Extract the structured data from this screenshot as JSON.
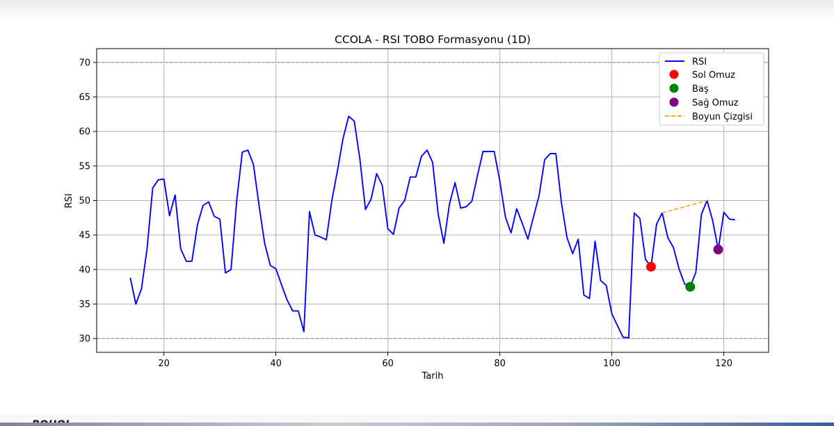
{
  "chart_data": {
    "type": "line",
    "title": "CCOLA - RSI TOBO Formasyonu (1D)",
    "xlabel": "Tarih",
    "ylabel": "RSI",
    "xlim": [
      8,
      128
    ],
    "ylim": [
      28,
      72
    ],
    "xticks": [
      20,
      40,
      60,
      80,
      100,
      120
    ],
    "yticks": [
      30,
      35,
      40,
      45,
      50,
      55,
      60,
      65,
      70
    ],
    "grid": true,
    "legend_position": "top-right",
    "series": [
      {
        "name": "RSI",
        "color": "#0000ff",
        "style": "solid",
        "x": [
          14,
          15,
          16,
          17,
          18,
          19,
          20,
          21,
          22,
          23,
          24,
          25,
          26,
          27,
          28,
          29,
          30,
          31,
          32,
          33,
          34,
          35,
          36,
          37,
          38,
          39,
          40,
          41,
          42,
          43,
          44,
          45,
          46,
          47,
          48,
          49,
          50,
          51,
          52,
          53,
          54,
          55,
          56,
          57,
          58,
          59,
          60,
          61,
          62,
          63,
          64,
          65,
          66,
          67,
          68,
          69,
          70,
          71,
          72,
          73,
          74,
          75,
          76,
          77,
          78,
          79,
          80,
          81,
          82,
          83,
          84,
          85,
          86,
          87,
          88,
          89,
          90,
          91,
          92,
          93,
          94,
          95,
          96,
          97,
          98,
          99,
          100,
          101,
          102,
          103,
          104,
          105,
          106,
          107,
          108,
          109,
          110,
          111,
          112,
          113,
          114,
          115,
          116,
          117,
          118,
          119,
          120,
          121,
          122
        ],
        "y": [
          38.8,
          35.0,
          37.2,
          43.0,
          51.8,
          53.0,
          53.1,
          47.8,
          50.8,
          43.0,
          41.2,
          41.2,
          46.5,
          49.3,
          49.8,
          47.7,
          47.3,
          39.5,
          40.0,
          50.0,
          57.0,
          57.3,
          55.2,
          49.3,
          43.8,
          40.6,
          40.1,
          37.8,
          35.6,
          34.0,
          34.0,
          31.0,
          48.4,
          45.0,
          44.7,
          44.3,
          50.0,
          54.3,
          59.0,
          62.2,
          61.5,
          56.0,
          48.7,
          50.2,
          53.9,
          52.2,
          45.9,
          45.1,
          48.9,
          50.0,
          53.4,
          53.4,
          56.4,
          57.3,
          55.5,
          48.0,
          43.8,
          49.5,
          52.6,
          48.9,
          49.1,
          49.9,
          53.6,
          57.1,
          57.1,
          57.1,
          52.8,
          47.6,
          45.3,
          48.8,
          46.7,
          44.4,
          47.6,
          50.7,
          55.9,
          56.8,
          56.8,
          49.7,
          44.6,
          42.3,
          44.4,
          36.3,
          35.8,
          44.1,
          38.4,
          37.7,
          33.6,
          31.9,
          30.2,
          30.1,
          48.2,
          47.4,
          41.5,
          40.4,
          46.6,
          48.2,
          44.6,
          43.2,
          40.1,
          37.9,
          37.5,
          39.6,
          48.0,
          50.0,
          47.1,
          42.9,
          48.3,
          47.3,
          47.2
        ]
      },
      {
        "name": "Boyun Çizgisi",
        "color": "#ffa500",
        "style": "dashed",
        "x": [
          109,
          117
        ],
        "y": [
          48.2,
          50.0
        ]
      }
    ],
    "points": [
      {
        "name": "Sol Omuz",
        "color": "#ff0000",
        "x": 107,
        "y": 40.4
      },
      {
        "name": "Baş",
        "color": "#008000",
        "x": 114,
        "y": 37.5
      },
      {
        "name": "Sağ Omuz",
        "color": "#800080",
        "x": 119,
        "y": 42.9
      }
    ],
    "hlines": [
      {
        "y": 70,
        "color": "#999999",
        "style": "dashed"
      },
      {
        "y": 30,
        "color": "#999999",
        "style": "dashed"
      }
    ],
    "legend": [
      "RSI",
      "Sol Omuz",
      "Baş",
      "Sağ Omuz",
      "Boyun Çizgisi"
    ]
  },
  "footer": {
    "cut_text": "BOHOL"
  }
}
